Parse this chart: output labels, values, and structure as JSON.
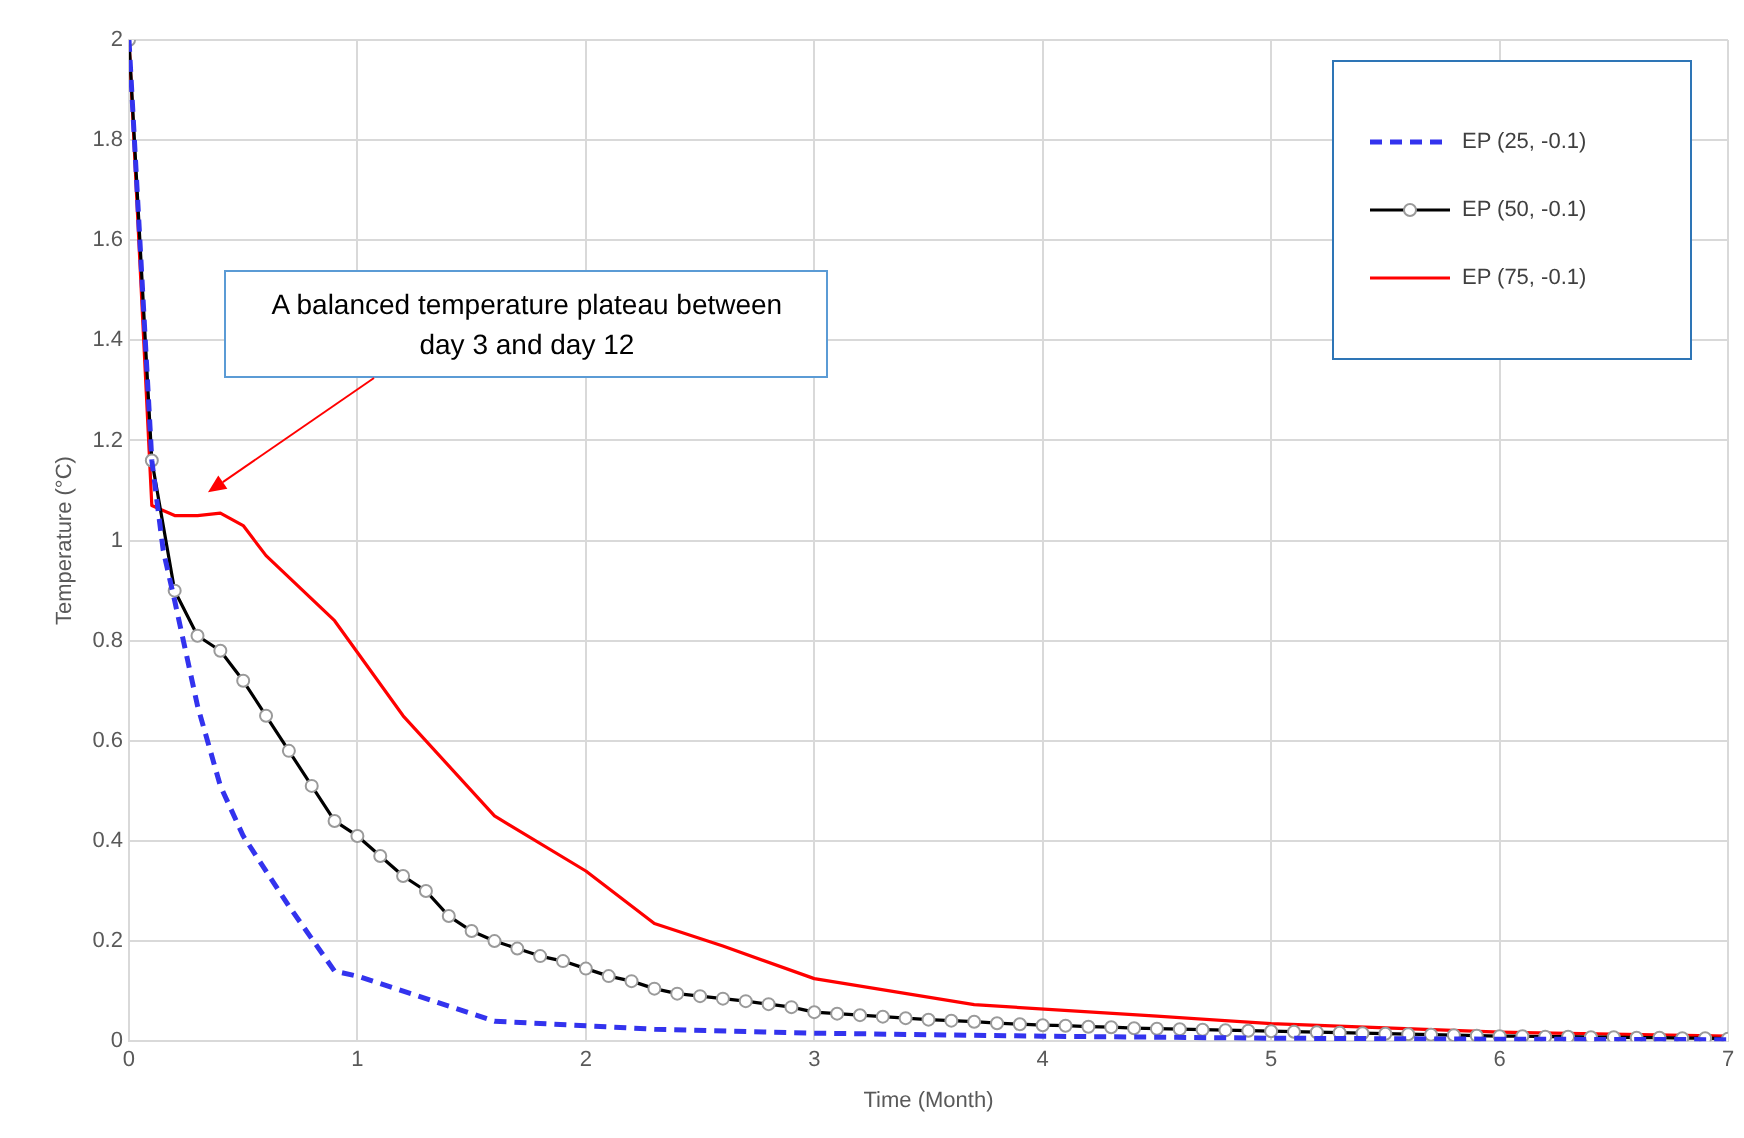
{
  "chart_data": {
    "type": "line",
    "xlabel": "Time (Month)",
    "ylabel": "Temperature (°C)",
    "xlim": [
      0,
      7
    ],
    "xticks": [
      0,
      1,
      2,
      3,
      4,
      5,
      6,
      7
    ],
    "ylim": [
      0,
      2
    ],
    "yticks": [
      0,
      0.2,
      0.4,
      0.6,
      0.8,
      1,
      1.2,
      1.4,
      1.6,
      1.8,
      2
    ],
    "grid": true,
    "legend": "top right",
    "annotations": [
      "A balanced temperature plateau between day 3 and day 12"
    ],
    "series": [
      {
        "name": "EP (25, -0.1)",
        "color": "#3333ee",
        "line_style": "dashed",
        "x": [
          0,
          0.1,
          0.15,
          0.2,
          0.3,
          0.4,
          0.5,
          0.7,
          0.9,
          1,
          1.6,
          2.3,
          3,
          4,
          5,
          6,
          7
        ],
        "values": [
          2,
          1.16,
          0.98,
          0.88,
          0.67,
          0.51,
          0.41,
          0.27,
          0.14,
          0.13,
          0.04,
          0.024,
          0.016,
          0.01,
          0.006,
          0.004,
          0.003
        ]
      },
      {
        "name": "EP (50, -0.1)",
        "color": "#000000",
        "marker": "circle",
        "x": [
          0,
          0.1,
          0.2,
          0.3,
          0.4,
          0.5,
          0.6,
          0.7,
          0.8,
          0.9,
          1,
          1.1,
          1.2,
          1.3,
          1.4,
          1.5,
          1.6,
          1.7,
          1.8,
          1.9,
          2,
          2.1,
          2.2,
          2.3,
          2.4,
          2.5,
          2.6,
          2.7,
          2.8,
          2.9,
          3,
          3.1,
          3.2,
          3.3,
          3.4,
          3.5,
          3.6,
          3.7,
          3.8,
          3.9,
          4,
          4.1,
          4.2,
          4.3,
          4.4,
          4.5,
          4.6,
          4.7,
          4.8,
          4.9,
          5,
          5.1,
          5.2,
          5.3,
          5.4,
          5.5,
          5.6,
          5.7,
          5.8,
          5.9,
          6,
          6.1,
          6.2,
          6.3,
          6.4,
          6.5,
          6.6,
          6.7,
          6.8,
          6.9,
          7
        ],
        "values": [
          2,
          1.16,
          0.9,
          0.81,
          0.78,
          0.72,
          0.65,
          0.58,
          0.51,
          0.44,
          0.41,
          0.37,
          0.33,
          0.3,
          0.25,
          0.22,
          0.2,
          0.185,
          0.17,
          0.16,
          0.145,
          0.13,
          0.12,
          0.105,
          0.095,
          0.09,
          0.085,
          0.08,
          0.074,
          0.068,
          0.058,
          0.055,
          0.052,
          0.049,
          0.046,
          0.043,
          0.041,
          0.039,
          0.036,
          0.034,
          0.032,
          0.031,
          0.029,
          0.028,
          0.026,
          0.025,
          0.024,
          0.023,
          0.022,
          0.021,
          0.02,
          0.019,
          0.018,
          0.017,
          0.016,
          0.015,
          0.014,
          0.013,
          0.012,
          0.011,
          0.01,
          0.01,
          0.009,
          0.009,
          0.008,
          0.008,
          0.007,
          0.007,
          0.006,
          0.006,
          0.005
        ]
      },
      {
        "name": "EP (75, -0.1)",
        "color": "#ff0000",
        "x": [
          0,
          0.1,
          0.2,
          0.3,
          0.4,
          0.5,
          0.6,
          0.9,
          1.2,
          1.6,
          2,
          2.3,
          2.6,
          3,
          3.7,
          4.5,
          5,
          6,
          7
        ],
        "values": [
          2,
          1.07,
          1.05,
          1.05,
          1.055,
          1.03,
          0.97,
          0.84,
          0.65,
          0.45,
          0.34,
          0.235,
          0.19,
          0.125,
          0.073,
          0.05,
          0.035,
          0.018,
          0.01
        ]
      }
    ]
  }
}
